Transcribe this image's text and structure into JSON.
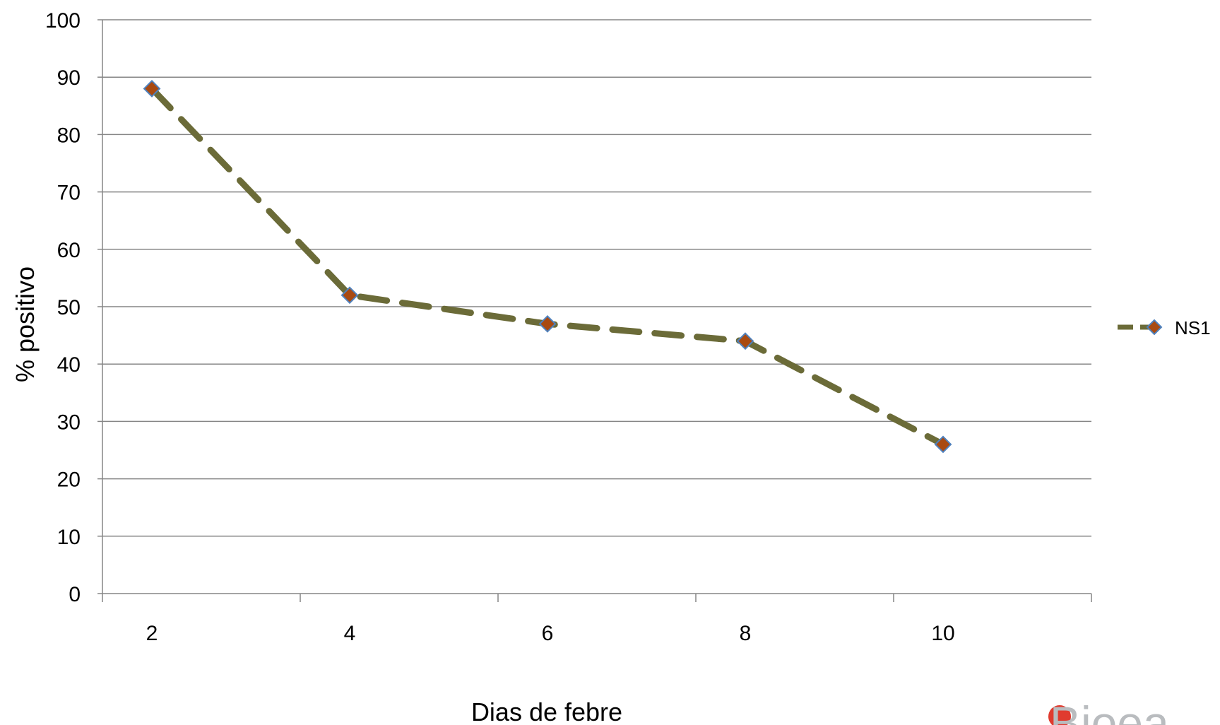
{
  "chart_data": {
    "type": "line",
    "title": "",
    "xlabel": "Dias de febre",
    "ylabel": "% positivo",
    "categories": [
      "2",
      "4",
      "6",
      "8",
      "10"
    ],
    "series": [
      {
        "name": "NS1",
        "values": [
          88,
          52,
          47,
          44,
          26
        ]
      }
    ],
    "ylim": [
      0,
      100
    ],
    "yticks": [
      0,
      10,
      20,
      30,
      40,
      50,
      60,
      70,
      80,
      90,
      100
    ],
    "grid": true,
    "legend": "right",
    "line_style": "dashed",
    "colors": {
      "line": "#6b6b38",
      "marker": "#a94a11",
      "marker_border": "#4f81bd",
      "grid": "#868686",
      "logo_red": "#e03b2f"
    }
  },
  "logo": {
    "text": "Bioea"
  }
}
